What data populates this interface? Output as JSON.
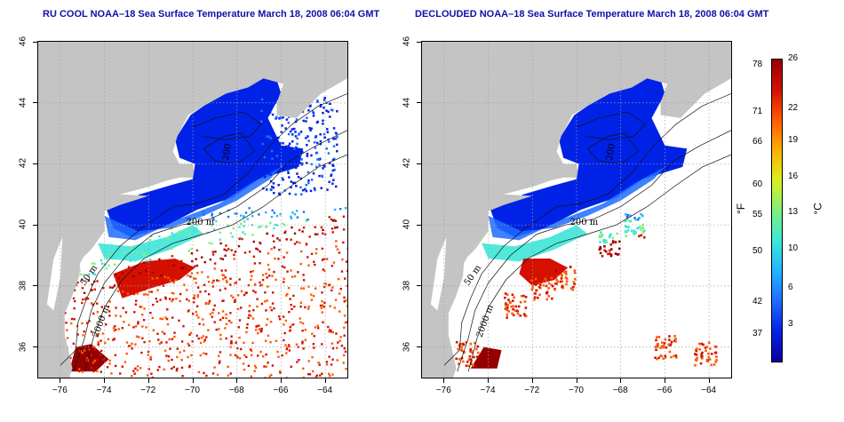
{
  "panels": [
    {
      "title": "RU COOL NOAA–18 Sea Surface Temperature March 18, 2008 06:04 GMT",
      "variant": "raw"
    },
    {
      "title": "DECLOUDED NOAA–18 Sea Surface Temperature March 18, 2008 06:04 GMT",
      "variant": "declouded"
    }
  ],
  "axes": {
    "x_ticks": [
      "−76",
      "−74",
      "−72",
      "−70",
      "−68",
      "−66",
      "−64"
    ],
    "y_ticks": [
      "36",
      "38",
      "40",
      "42",
      "44",
      "46"
    ],
    "lon_range": [
      -77,
      -63
    ],
    "lat_range": [
      35,
      46
    ]
  },
  "contour_labels": [
    "50 m",
    "200 m",
    "2000 m",
    "200 m",
    "200"
  ],
  "colorbar": {
    "fahrenheit_ticks": [
      "78",
      "71",
      "66",
      "60",
      "55",
      "50",
      "42",
      "37"
    ],
    "celsius_ticks": [
      "26",
      "22",
      "19",
      "16",
      "13",
      "10",
      "6",
      "3"
    ],
    "fahrenheit_unit": "°F",
    "celsius_unit": "°C",
    "colors": [
      "#0c00a0",
      "#0022e6",
      "#1f6cff",
      "#22b4ff",
      "#3ee6d8",
      "#7ef07a",
      "#d8f01e",
      "#ffb000",
      "#ff5a00",
      "#d41000",
      "#960000"
    ]
  },
  "map_colors": {
    "land": "#c4c4c4",
    "grid": "#a0a0a0"
  }
}
